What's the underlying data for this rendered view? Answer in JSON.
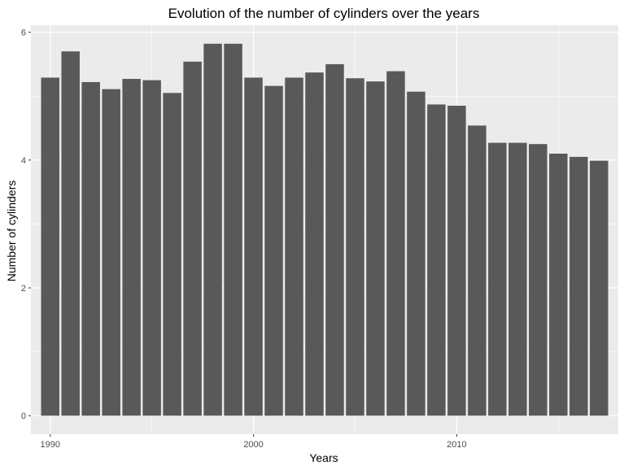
{
  "chart_data": {
    "type": "bar",
    "title": "Evolution of the number of cylinders over the years",
    "xlabel": "Years",
    "ylabel": "Number of cylinders",
    "x": [
      1990,
      1991,
      1992,
      1993,
      1994,
      1995,
      1996,
      1997,
      1998,
      1999,
      2000,
      2001,
      2002,
      2003,
      2004,
      2005,
      2006,
      2007,
      2008,
      2009,
      2010,
      2011,
      2012,
      2013,
      2014,
      2015,
      2016,
      2017
    ],
    "values": [
      5.29,
      5.7,
      5.22,
      5.11,
      5.27,
      5.25,
      5.05,
      5.54,
      5.82,
      5.82,
      5.29,
      5.16,
      5.29,
      5.37,
      5.5,
      5.28,
      5.23,
      5.39,
      5.07,
      4.87,
      4.85,
      4.54,
      4.27,
      4.27,
      4.25,
      4.1,
      4.05,
      3.99
    ],
    "xlim": [
      1989.05,
      2017.95
    ],
    "ylim": [
      -0.29,
      6.11
    ],
    "x_ticks": [
      1990,
      2000,
      2010
    ],
    "y_ticks": [
      0,
      2,
      4,
      6
    ],
    "grid": true,
    "bar_color": "#595959",
    "panel_color": "#ebebeb",
    "grid_color": "#ffffff"
  }
}
